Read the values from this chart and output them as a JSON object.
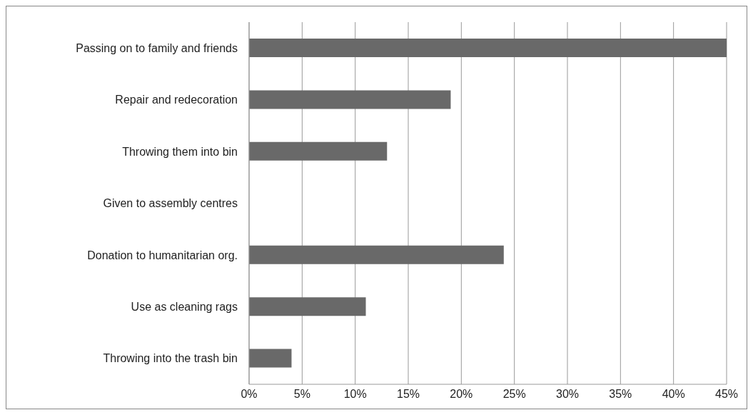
{
  "chart_data": {
    "type": "bar",
    "orientation": "horizontal",
    "categories": [
      "Passing on to family and friends",
      "Repair and redecoration",
      "Throwing them into bin",
      "Given to assembly centres",
      "Donation to humanitarian org.",
      "Use as cleaning rags",
      "Throwing into the trash bin"
    ],
    "values": [
      45,
      19,
      13,
      0,
      24,
      11,
      4
    ],
    "color": "#696969",
    "xlim": [
      0,
      45
    ],
    "xticks": [
      {
        "value": 0,
        "label": "0%"
      },
      {
        "value": 5,
        "label": "5%"
      },
      {
        "value": 10,
        "label": "10%"
      },
      {
        "value": 15,
        "label": "15%"
      },
      {
        "value": 20,
        "label": "20%"
      },
      {
        "value": 25,
        "label": "25%"
      },
      {
        "value": 30,
        "label": "30%"
      },
      {
        "value": 35,
        "label": "35%"
      },
      {
        "value": 40,
        "label": "40%"
      },
      {
        "value": 45,
        "label": "45%"
      }
    ],
    "grid": "x",
    "legend": false
  }
}
